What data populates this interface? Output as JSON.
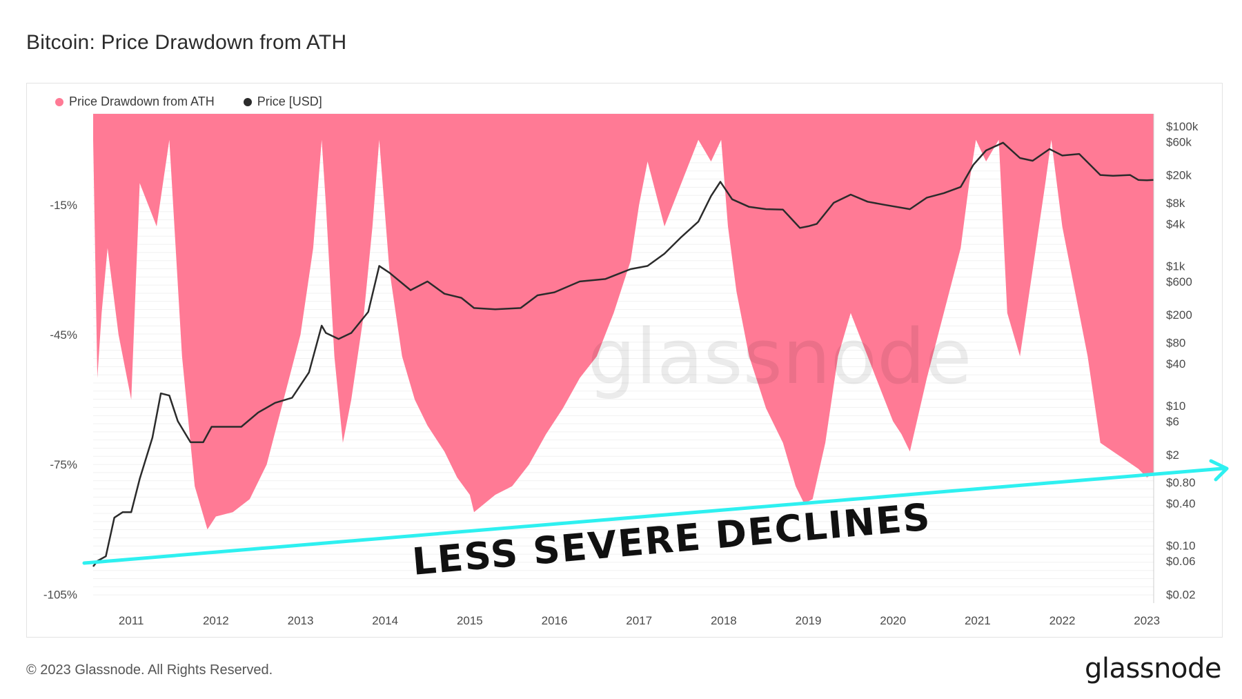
{
  "title": "Bitcoin: Price Drawdown from ATH",
  "footer": "© 2023 Glassnode. All Rights Reserved.",
  "brand": "glassnode",
  "watermark": "glassnode",
  "colors": {
    "drawdown": "#ff7a95",
    "price": "#2b2b2b",
    "annotation": "#2ef0f0"
  },
  "chart_data": {
    "type": "area",
    "left_axis": {
      "ticks": [
        "-15%",
        "-45%",
        "-75%",
        "-105%"
      ],
      "values": [
        -15,
        -45,
        -75,
        -105
      ],
      "ylim": [
        -107,
        6
      ]
    },
    "right_axis": {
      "scale": "log",
      "ticks": [
        "$100k",
        "$60k",
        "$20k",
        "$8k",
        "$4k",
        "$1k",
        "$600",
        "$200",
        "$80",
        "$40",
        "$10",
        "$6",
        "$2",
        "$0.80",
        "$0.40",
        "$0.10",
        "$0.06",
        "$0.02"
      ],
      "values": [
        100000,
        60000,
        20000,
        8000,
        4000,
        1000,
        600,
        200,
        80,
        40,
        10,
        6,
        2,
        0.8,
        0.4,
        0.1,
        0.06,
        0.02
      ]
    },
    "x_ticks": [
      "2011",
      "2012",
      "2013",
      "2014",
      "2015",
      "2016",
      "2017",
      "2018",
      "2019",
      "2020",
      "2021",
      "2022",
      "2023"
    ],
    "x_tick_values": [
      2011,
      2012,
      2013,
      2014,
      2015,
      2016,
      2017,
      2018,
      2019,
      2020,
      2021,
      2022,
      2023
    ],
    "xlim": [
      2010.55,
      2023.08
    ],
    "legend": [
      "Price Drawdown from ATH",
      "Price [USD]"
    ],
    "series": [
      {
        "name": "Price Drawdown from ATH",
        "x": [
          2010.55,
          2010.6,
          2010.65,
          2010.72,
          2010.85,
          2011.0,
          2011.1,
          2011.3,
          2011.45,
          2011.6,
          2011.75,
          2011.9,
          2012.0,
          2012.2,
          2012.4,
          2012.6,
          2012.8,
          2013.0,
          2013.15,
          2013.25,
          2013.3,
          2013.4,
          2013.5,
          2013.6,
          2013.75,
          2013.85,
          2013.93,
          2014.05,
          2014.2,
          2014.35,
          2014.5,
          2014.7,
          2014.85,
          2015.0,
          2015.05,
          2015.3,
          2015.5,
          2015.7,
          2015.9,
          2016.1,
          2016.3,
          2016.5,
          2016.7,
          2016.9,
          2017.0,
          2017.1,
          2017.3,
          2017.5,
          2017.7,
          2017.85,
          2017.97,
          2018.05,
          2018.15,
          2018.3,
          2018.5,
          2018.7,
          2018.85,
          2018.95,
          2019.05,
          2019.2,
          2019.35,
          2019.5,
          2019.7,
          2019.9,
          2020.0,
          2020.1,
          2020.2,
          2020.4,
          2020.6,
          2020.8,
          2020.9,
          2020.98,
          2021.1,
          2021.25,
          2021.35,
          2021.5,
          2021.65,
          2021.8,
          2021.87,
          2022.0,
          2022.15,
          2022.3,
          2022.45,
          2022.6,
          2022.75,
          2022.9,
          2023.0,
          2023.08
        ],
        "values": [
          0,
          -55,
          -40,
          -25,
          -45,
          -60,
          -10,
          -20,
          0,
          -50,
          -80,
          -90,
          -87,
          -86,
          -83,
          -75,
          -60,
          -45,
          -25,
          0,
          -15,
          -50,
          -70,
          -60,
          -40,
          -20,
          0,
          -30,
          -50,
          -60,
          -66,
          -72,
          -78,
          -82,
          -86,
          -82,
          -80,
          -75,
          -68,
          -62,
          -55,
          -50,
          -40,
          -28,
          -15,
          -5,
          -20,
          -10,
          0,
          -5,
          0,
          -20,
          -35,
          -50,
          -62,
          -70,
          -80,
          -84,
          -83,
          -70,
          -50,
          -40,
          -50,
          -60,
          -65,
          -68,
          -72,
          -55,
          -40,
          -25,
          -10,
          0,
          -5,
          0,
          -40,
          -50,
          -30,
          -10,
          0,
          -20,
          -35,
          -50,
          -70,
          -72,
          -74,
          -76,
          -78,
          -77
        ]
      },
      {
        "name": "Price [USD]",
        "x": [
          2010.55,
          2010.6,
          2010.7,
          2010.8,
          2010.9,
          2011.0,
          2011.1,
          2011.25,
          2011.35,
          2011.45,
          2011.55,
          2011.7,
          2011.85,
          2011.95,
          2012.1,
          2012.3,
          2012.5,
          2012.7,
          2012.9,
          2013.1,
          2013.25,
          2013.3,
          2013.45,
          2013.6,
          2013.8,
          2013.93,
          2014.05,
          2014.3,
          2014.5,
          2014.7,
          2014.9,
          2015.05,
          2015.3,
          2015.6,
          2015.8,
          2016.0,
          2016.3,
          2016.6,
          2016.9,
          2017.1,
          2017.3,
          2017.5,
          2017.7,
          2017.85,
          2017.96,
          2018.1,
          2018.3,
          2018.5,
          2018.7,
          2018.9,
          2019.0,
          2019.1,
          2019.3,
          2019.5,
          2019.7,
          2019.9,
          2020.2,
          2020.4,
          2020.6,
          2020.8,
          2020.95,
          2021.1,
          2021.3,
          2021.5,
          2021.65,
          2021.85,
          2022.0,
          2022.2,
          2022.45,
          2022.6,
          2022.8,
          2022.9,
          2023.0,
          2023.08
        ],
        "values": [
          0.05,
          0.06,
          0.07,
          0.25,
          0.3,
          0.3,
          0.9,
          3.5,
          15,
          14,
          6,
          3,
          3,
          5,
          5,
          5,
          8,
          11,
          13,
          30,
          140,
          110,
          90,
          110,
          220,
          1000,
          800,
          450,
          600,
          400,
          350,
          250,
          240,
          250,
          380,
          420,
          600,
          650,
          900,
          1000,
          1500,
          2600,
          4300,
          10000,
          16000,
          9000,
          7000,
          6500,
          6400,
          3500,
          3700,
          4000,
          8000,
          10500,
          8300,
          7500,
          6500,
          9500,
          11000,
          13500,
          28000,
          45000,
          58000,
          35000,
          32000,
          47000,
          38000,
          40000,
          20000,
          19500,
          20000,
          17000,
          16800,
          17000
        ]
      }
    ]
  },
  "annotation": {
    "text": "LESS SEVERE DECLINES"
  }
}
